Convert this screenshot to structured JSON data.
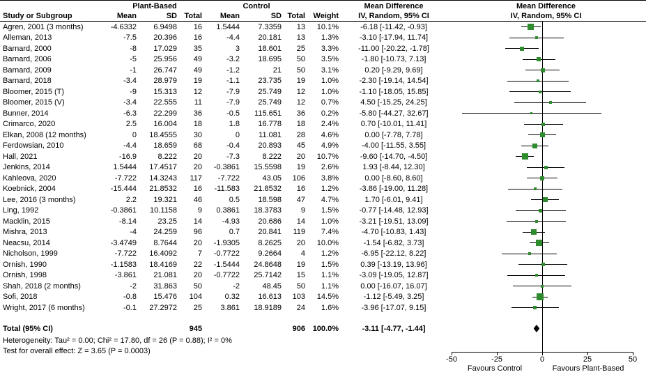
{
  "header": {
    "col_study": "Study or Subgroup",
    "group_plant": "Plant-Based",
    "group_control": "Control",
    "group_md_text": "Mean Difference",
    "group_md_plot": "Mean Difference",
    "sub_mean_pb": "Mean",
    "sub_sd_pb": "SD",
    "sub_total_pb": "Total",
    "sub_mean_c": "Mean",
    "sub_sd_c": "SD",
    "sub_total_c": "Total",
    "sub_weight": "Weight",
    "sub_ci_text": "IV, Random, 95% CI",
    "sub_ci_plot": "IV, Random, 95% CI"
  },
  "chart_data": {
    "type": "forest",
    "effect_measure": "Mean Difference IV, Random, 95% CI",
    "studies": [
      {
        "name": "Agren, 2001 (3 months)",
        "pb_mean": "-4.6332",
        "pb_sd": "6.9498",
        "pb_total": "16",
        "c_mean": "1.5444",
        "c_sd": "7.3359",
        "c_total": "13",
        "weight": "10.1%",
        "md_text": "-6.18 [-11.42, -0.93]",
        "est": -6.18,
        "lo": -11.42,
        "hi": -0.93,
        "w": 10.1
      },
      {
        "name": "Alleman, 2013",
        "pb_mean": "-7.5",
        "pb_sd": "20.396",
        "pb_total": "16",
        "c_mean": "-4.4",
        "c_sd": "20.181",
        "c_total": "13",
        "weight": "1.3%",
        "md_text": "-3.10 [-17.94, 11.74]",
        "est": -3.1,
        "lo": -17.94,
        "hi": 11.74,
        "w": 1.3
      },
      {
        "name": "Barnard, 2000",
        "pb_mean": "-8",
        "pb_sd": "17.029",
        "pb_total": "35",
        "c_mean": "3",
        "c_sd": "18.601",
        "c_total": "25",
        "weight": "3.3%",
        "md_text": "-11.00 [-20.22, -1.78]",
        "est": -11.0,
        "lo": -20.22,
        "hi": -1.78,
        "w": 3.3
      },
      {
        "name": "Barnard, 2006",
        "pb_mean": "-5",
        "pb_sd": "25.956",
        "pb_total": "49",
        "c_mean": "-3.2",
        "c_sd": "18.695",
        "c_total": "50",
        "weight": "3.5%",
        "md_text": "-1.80 [-10.73, 7.13]",
        "est": -1.8,
        "lo": -10.73,
        "hi": 7.13,
        "w": 3.5
      },
      {
        "name": "Barnard, 2009",
        "pb_mean": "-1",
        "pb_sd": "26.747",
        "pb_total": "49",
        "c_mean": "-1.2",
        "c_sd": "21",
        "c_total": "50",
        "weight": "3.1%",
        "md_text": "0.20 [-9.29, 9.69]",
        "est": 0.2,
        "lo": -9.29,
        "hi": 9.69,
        "w": 3.1
      },
      {
        "name": "Barnard, 2018",
        "pb_mean": "-3.4",
        "pb_sd": "28.979",
        "pb_total": "19",
        "c_mean": "-1.1",
        "c_sd": "23.735",
        "c_total": "19",
        "weight": "1.0%",
        "md_text": "-2.30 [-19.14, 14.54]",
        "est": -2.3,
        "lo": -19.14,
        "hi": 14.54,
        "w": 1.0
      },
      {
        "name": "Bloomer, 2015 (T)",
        "pb_mean": "-9",
        "pb_sd": "15.313",
        "pb_total": "12",
        "c_mean": "-7.9",
        "c_sd": "25.749",
        "c_total": "12",
        "weight": "1.0%",
        "md_text": "-1.10 [-18.05, 15.85]",
        "est": -1.1,
        "lo": -18.05,
        "hi": 15.85,
        "w": 1.0
      },
      {
        "name": "Bloomer, 2015 (V)",
        "pb_mean": "-3.4",
        "pb_sd": "22.555",
        "pb_total": "11",
        "c_mean": "-7.9",
        "c_sd": "25.749",
        "c_total": "12",
        "weight": "0.7%",
        "md_text": "4.50 [-15.25, 24.25]",
        "est": 4.5,
        "lo": -15.25,
        "hi": 24.25,
        "w": 0.7
      },
      {
        "name": "Bunner, 2014",
        "pb_mean": "-6.3",
        "pb_sd": "22.299",
        "pb_total": "36",
        "c_mean": "-0.5",
        "c_sd": "115.651",
        "c_total": "36",
        "weight": "0.2%",
        "md_text": "-5.80 [-44.27, 32.67]",
        "est": -5.8,
        "lo": -44.27,
        "hi": 32.67,
        "w": 0.2
      },
      {
        "name": "Crimarco, 2020",
        "pb_mean": "2.5",
        "pb_sd": "16.004",
        "pb_total": "18",
        "c_mean": "1.8",
        "c_sd": "16.778",
        "c_total": "18",
        "weight": "2.4%",
        "md_text": "0.70 [-10.01, 11.41]",
        "est": 0.7,
        "lo": -10.01,
        "hi": 11.41,
        "w": 2.4
      },
      {
        "name": "Elkan, 2008 (12 months)",
        "pb_mean": "0",
        "pb_sd": "18.4555",
        "pb_total": "30",
        "c_mean": "0",
        "c_sd": "11.081",
        "c_total": "28",
        "weight": "4.6%",
        "md_text": "0.00 [-7.78, 7.78]",
        "est": 0.0,
        "lo": -7.78,
        "hi": 7.78,
        "w": 4.6
      },
      {
        "name": "Ferdowsian, 2010",
        "pb_mean": "-4.4",
        "pb_sd": "18.659",
        "pb_total": "68",
        "c_mean": "-0.4",
        "c_sd": "20.893",
        "c_total": "45",
        "weight": "4.9%",
        "md_text": "-4.00 [-11.55, 3.55]",
        "est": -4.0,
        "lo": -11.55,
        "hi": 3.55,
        "w": 4.9
      },
      {
        "name": "Hall, 2021",
        "pb_mean": "-16.9",
        "pb_sd": "8.222",
        "pb_total": "20",
        "c_mean": "-7.3",
        "c_sd": "8.222",
        "c_total": "20",
        "weight": "10.7%",
        "md_text": "-9.60 [-14.70, -4.50]",
        "est": -9.6,
        "lo": -14.7,
        "hi": -4.5,
        "w": 10.7
      },
      {
        "name": "Jenkins, 2014",
        "pb_mean": "1.5444",
        "pb_sd": "17.4517",
        "pb_total": "20",
        "c_mean": "-0.3861",
        "c_sd": "15.5598",
        "c_total": "19",
        "weight": "2.6%",
        "md_text": "1.93 [-8.44, 12.30]",
        "est": 1.93,
        "lo": -8.44,
        "hi": 12.3,
        "w": 2.6
      },
      {
        "name": "Kahleova, 2020",
        "pb_mean": "-7.722",
        "pb_sd": "14.3243",
        "pb_total": "117",
        "c_mean": "-7.722",
        "c_sd": "43.05",
        "c_total": "106",
        "weight": "3.8%",
        "md_text": "0.00 [-8.60, 8.60]",
        "est": 0.0,
        "lo": -8.6,
        "hi": 8.6,
        "w": 3.8
      },
      {
        "name": "Koebnick, 2004",
        "pb_mean": "-15.444",
        "pb_sd": "21.8532",
        "pb_total": "16",
        "c_mean": "-11.583",
        "c_sd": "21.8532",
        "c_total": "16",
        "weight": "1.2%",
        "md_text": "-3.86 [-19.00, 11.28]",
        "est": -3.86,
        "lo": -19.0,
        "hi": 11.28,
        "w": 1.2
      },
      {
        "name": "Lee, 2016 (3 months)",
        "pb_mean": "2.2",
        "pb_sd": "19.321",
        "pb_total": "46",
        "c_mean": "0.5",
        "c_sd": "18.598",
        "c_total": "47",
        "weight": "4.7%",
        "md_text": "1.70 [-6.01, 9.41]",
        "est": 1.7,
        "lo": -6.01,
        "hi": 9.41,
        "w": 4.7
      },
      {
        "name": "Ling, 1992",
        "pb_mean": "-0.3861",
        "pb_sd": "10.1158",
        "pb_total": "9",
        "c_mean": "0.3861",
        "c_sd": "18.3783",
        "c_total": "9",
        "weight": "1.5%",
        "md_text": "-0.77 [-14.48, 12.93]",
        "est": -0.77,
        "lo": -14.48,
        "hi": 12.93,
        "w": 1.5
      },
      {
        "name": "Macklin, 2015",
        "pb_mean": "-8.14",
        "pb_sd": "23.25",
        "pb_total": "14",
        "c_mean": "-4.93",
        "c_sd": "20.686",
        "c_total": "14",
        "weight": "1.0%",
        "md_text": "-3.21 [-19.51, 13.09]",
        "est": -3.21,
        "lo": -19.51,
        "hi": 13.09,
        "w": 1.0
      },
      {
        "name": "Mishra, 2013",
        "pb_mean": "-4",
        "pb_sd": "24.259",
        "pb_total": "96",
        "c_mean": "0.7",
        "c_sd": "20.841",
        "c_total": "119",
        "weight": "7.4%",
        "md_text": "-4.70 [-10.83, 1.43]",
        "est": -4.7,
        "lo": -10.83,
        "hi": 1.43,
        "w": 7.4
      },
      {
        "name": "Neacsu, 2014",
        "pb_mean": "-3.4749",
        "pb_sd": "8.7644",
        "pb_total": "20",
        "c_mean": "-1.9305",
        "c_sd": "8.2625",
        "c_total": "20",
        "weight": "10.0%",
        "md_text": "-1.54 [-6.82, 3.73]",
        "est": -1.54,
        "lo": -6.82,
        "hi": 3.73,
        "w": 10.0
      },
      {
        "name": "Nicholson, 1999",
        "pb_mean": "-7.722",
        "pb_sd": "16.4092",
        "pb_total": "7",
        "c_mean": "-0.7722",
        "c_sd": "9.2664",
        "c_total": "4",
        "weight": "1.2%",
        "md_text": "-6.95 [-22.12, 8.22]",
        "est": -6.95,
        "lo": -22.12,
        "hi": 8.22,
        "w": 1.2
      },
      {
        "name": "Ornish, 1990",
        "pb_mean": "-1.1583",
        "pb_sd": "18.4169",
        "pb_total": "22",
        "c_mean": "-1.5444",
        "c_sd": "24.8648",
        "c_total": "19",
        "weight": "1.5%",
        "md_text": "0.39 [-13.19, 13.96]",
        "est": 0.39,
        "lo": -13.19,
        "hi": 13.96,
        "w": 1.5
      },
      {
        "name": "Ornish, 1998",
        "pb_mean": "-3.861",
        "pb_sd": "21.081",
        "pb_total": "20",
        "c_mean": "-0.7722",
        "c_sd": "25.7142",
        "c_total": "15",
        "weight": "1.1%",
        "md_text": "-3.09 [-19.05, 12.87]",
        "est": -3.09,
        "lo": -19.05,
        "hi": 12.87,
        "w": 1.1
      },
      {
        "name": "Shah, 2018 (2 months)",
        "pb_mean": "-2",
        "pb_sd": "31.863",
        "pb_total": "50",
        "c_mean": "-2",
        "c_sd": "48.45",
        "c_total": "50",
        "weight": "1.1%",
        "md_text": "0.00 [-16.07, 16.07]",
        "est": 0.0,
        "lo": -16.07,
        "hi": 16.07,
        "w": 1.1
      },
      {
        "name": "Sofi, 2018",
        "pb_mean": "-0.8",
        "pb_sd": "15.476",
        "pb_total": "104",
        "c_mean": "0.32",
        "c_sd": "16.613",
        "c_total": "103",
        "weight": "14.5%",
        "md_text": "-1.12 [-5.49, 3.25]",
        "est": -1.12,
        "lo": -5.49,
        "hi": 3.25,
        "w": 14.5
      },
      {
        "name": "Wright, 2017 (6 months)",
        "pb_mean": "-0.1",
        "pb_sd": "27.2972",
        "pb_total": "25",
        "c_mean": "3.861",
        "c_sd": "18.9189",
        "c_total": "24",
        "weight": "1.6%",
        "md_text": "-3.96 [-17.07, 9.15]",
        "est": -3.96,
        "lo": -17.07,
        "hi": 9.15,
        "w": 1.6
      }
    ],
    "total": {
      "label": "Total (95% CI)",
      "pb_total": "945",
      "c_total": "906",
      "weight": "100.0%",
      "md_text": "-3.11 [-4.77, -1.44]",
      "est": -3.11,
      "lo": -4.77,
      "hi": -1.44
    },
    "axis": {
      "min": -50,
      "max": 50,
      "ticks": [
        -50,
        -25,
        0,
        25,
        50
      ],
      "left_label": "Favours Control",
      "right_label": "Favours Plant-Based"
    }
  },
  "footer": {
    "heterogeneity": "Heterogeneity: Tau² = 0.00; Chi² = 17.80, df = 26 (P = 0.88); I² = 0%",
    "overall": "Test for overall effect: Z = 3.65 (P = 0.0003)"
  },
  "colors": {
    "marker": "#2e8b2e",
    "diamond": "#000000",
    "line": "#000000"
  }
}
